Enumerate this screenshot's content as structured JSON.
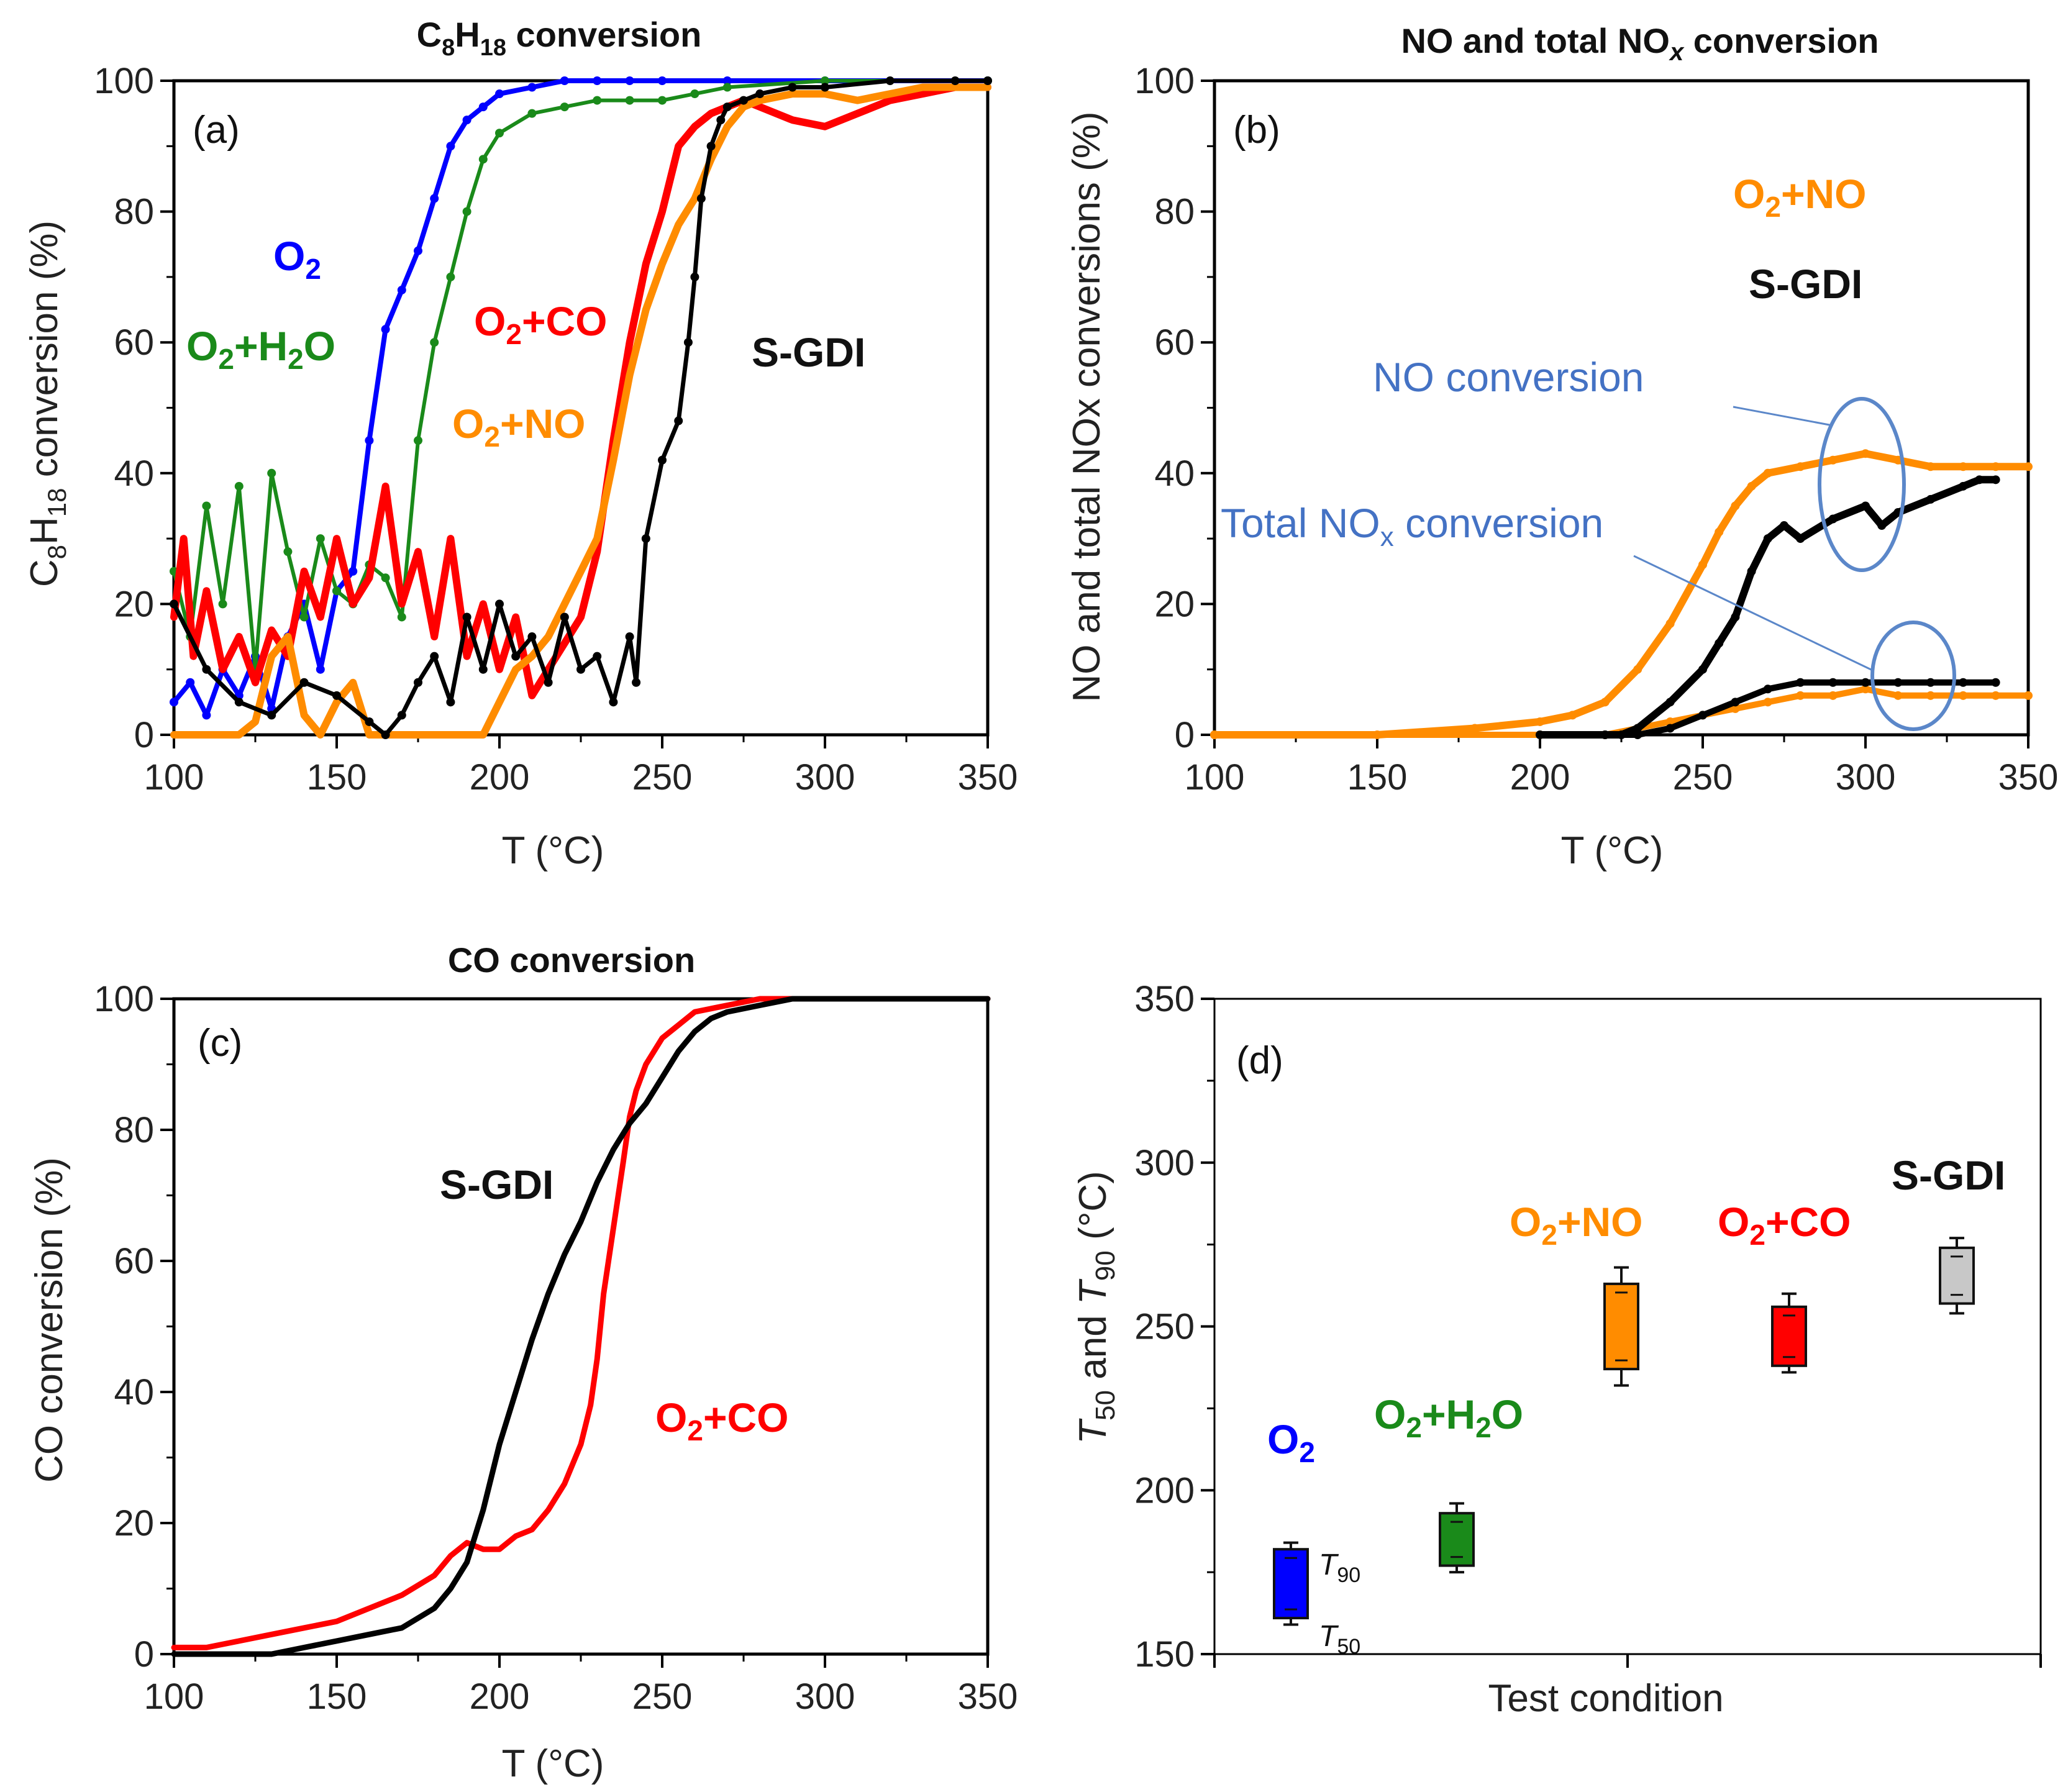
{
  "chart_data": [
    {
      "id": "a",
      "type": "scatter",
      "title": "C8H18 conversion",
      "title_parts": {
        "pre": "C",
        "s1": "8",
        "mid": "H",
        "s2": "18",
        "post": " conversion"
      },
      "panel_label": "(a)",
      "xlabel": "T (°C)",
      "ylabel": "C8H18 conversion (%)",
      "ylabel_parts": {
        "pre": "C",
        "s1": "8",
        "mid": "H",
        "s2": "18",
        "post": " conversion (%)"
      },
      "xlim": [
        100,
        350
      ],
      "ylim": [
        0,
        100
      ],
      "xticks": [
        "100",
        "150",
        "200",
        "250",
        "300",
        "350"
      ],
      "yticks": [
        "0",
        "20",
        "40",
        "60",
        "80",
        "100"
      ],
      "series": [
        {
          "name": "O2",
          "color": "#0000ff",
          "x": [
            100,
            105,
            110,
            115,
            120,
            125,
            130,
            135,
            140,
            145,
            150,
            155,
            160,
            165,
            170,
            175,
            180,
            185,
            190,
            195,
            200,
            210,
            220,
            230,
            240,
            250,
            270,
            300,
            350
          ],
          "y": [
            5,
            8,
            3,
            10,
            6,
            12,
            4,
            15,
            20,
            10,
            22,
            25,
            45,
            62,
            68,
            74,
            82,
            90,
            94,
            96,
            98,
            99,
            100,
            100,
            100,
            100,
            100,
            100,
            100
          ]
        },
        {
          "name": "O2+H2O",
          "color": "#1a8a1a",
          "x": [
            100,
            105,
            110,
            115,
            120,
            125,
            130,
            135,
            140,
            145,
            150,
            155,
            160,
            165,
            170,
            175,
            180,
            185,
            190,
            195,
            200,
            210,
            220,
            230,
            240,
            250,
            260,
            270,
            300,
            350
          ],
          "y": [
            25,
            15,
            35,
            20,
            38,
            10,
            40,
            28,
            18,
            30,
            22,
            20,
            26,
            24,
            18,
            45,
            60,
            70,
            80,
            88,
            92,
            95,
            96,
            97,
            97,
            97,
            98,
            99,
            100,
            100
          ]
        },
        {
          "name": "O2+CO",
          "color": "#ff0000",
          "x": [
            100,
            103,
            106,
            110,
            115,
            120,
            125,
            130,
            135,
            140,
            145,
            150,
            155,
            160,
            165,
            170,
            175,
            180,
            185,
            190,
            195,
            200,
            205,
            210,
            215,
            220,
            225,
            230,
            235,
            240,
            245,
            250,
            255,
            260,
            265,
            270,
            275,
            280,
            290,
            300,
            310,
            320,
            330,
            340,
            350
          ],
          "y": [
            18,
            30,
            12,
            22,
            10,
            15,
            8,
            16,
            12,
            25,
            18,
            30,
            20,
            24,
            38,
            20,
            28,
            15,
            30,
            12,
            20,
            10,
            18,
            6,
            10,
            14,
            18,
            28,
            45,
            60,
            72,
            80,
            90,
            93,
            95,
            96,
            97,
            96,
            94,
            93,
            95,
            97,
            98,
            99,
            99
          ]
        },
        {
          "name": "O2+NO",
          "color": "#ff8c00",
          "x": [
            100,
            110,
            120,
            125,
            130,
            135,
            140,
            145,
            150,
            155,
            160,
            165,
            180,
            195,
            200,
            205,
            210,
            215,
            220,
            225,
            230,
            235,
            240,
            245,
            250,
            255,
            260,
            265,
            270,
            275,
            280,
            290,
            300,
            310,
            320,
            330,
            340,
            350
          ],
          "y": [
            0,
            0,
            0,
            2,
            12,
            15,
            3,
            0,
            5,
            8,
            0,
            0,
            0,
            0,
            5,
            10,
            12,
            15,
            20,
            25,
            30,
            42,
            55,
            65,
            72,
            78,
            82,
            88,
            93,
            96,
            97,
            98,
            98,
            97,
            98,
            99,
            99,
            99
          ]
        },
        {
          "name": "S-GDI",
          "color": "#000000",
          "x": [
            100,
            110,
            120,
            130,
            140,
            150,
            160,
            165,
            170,
            175,
            180,
            185,
            190,
            195,
            200,
            205,
            210,
            215,
            220,
            225,
            230,
            235,
            240,
            242,
            245,
            250,
            255,
            258,
            260,
            262,
            265,
            268,
            270,
            275,
            280,
            290,
            300,
            320,
            340,
            350
          ],
          "y": [
            20,
            10,
            5,
            3,
            8,
            6,
            2,
            0,
            3,
            8,
            12,
            5,
            18,
            10,
            20,
            12,
            15,
            8,
            18,
            10,
            12,
            5,
            15,
            8,
            30,
            42,
            48,
            60,
            70,
            82,
            90,
            94,
            96,
            97,
            98,
            99,
            99,
            100,
            100,
            100
          ]
        }
      ],
      "annotations": [
        {
          "label": "O2",
          "color": "#0000ff"
        },
        {
          "label": "O2+H2O",
          "color": "#1a8a1a"
        },
        {
          "label": "O2+CO",
          "color": "#ff0000"
        },
        {
          "label": "O2+NO",
          "color": "#ff8c00"
        },
        {
          "label": "S-GDI",
          "color": "#111111"
        }
      ]
    },
    {
      "id": "b",
      "type": "scatter",
      "title": "NO and total NOx conversion",
      "title_parts": {
        "pre": "NO and total NO",
        "sub": "x",
        "post": " conversion"
      },
      "panel_label": "(b)",
      "xlabel": "T (°C)",
      "ylabel": "NO and total NOx conversions (%)",
      "xlim": [
        100,
        350
      ],
      "ylim": [
        0,
        100
      ],
      "xticks": [
        "100",
        "150",
        "200",
        "250",
        "300",
        "350"
      ],
      "yticks": [
        "0",
        "20",
        "40",
        "60",
        "80",
        "100"
      ],
      "series": [
        {
          "name": "O2+NO, NO conversion",
          "color": "#ff8c00",
          "x": [
            100,
            150,
            180,
            200,
            210,
            220,
            230,
            240,
            250,
            255,
            260,
            265,
            270,
            280,
            290,
            300,
            310,
            320,
            330,
            340,
            350
          ],
          "y": [
            0,
            0,
            1,
            2,
            3,
            5,
            10,
            17,
            26,
            31,
            35,
            38,
            40,
            41,
            42,
            43,
            42,
            41,
            41,
            41,
            41
          ]
        },
        {
          "name": "O2+NO, total NOx conversion",
          "color": "#ff8c00",
          "x": [
            100,
            200,
            220,
            230,
            240,
            250,
            260,
            270,
            280,
            290,
            300,
            310,
            320,
            330,
            340,
            350
          ],
          "y": [
            0,
            0,
            0,
            1,
            2,
            3,
            4,
            5,
            6,
            6,
            7,
            6,
            6,
            6,
            6,
            6
          ]
        },
        {
          "name": "S-GDI, NO conversion",
          "color": "#000000",
          "x": [
            200,
            220,
            225,
            230,
            240,
            250,
            255,
            260,
            265,
            270,
            275,
            280,
            290,
            300,
            305,
            310,
            320,
            330,
            335,
            340
          ],
          "y": [
            0,
            0,
            0,
            1,
            5,
            10,
            14,
            18,
            25,
            30,
            32,
            30,
            33,
            35,
            32,
            34,
            36,
            38,
            39,
            39
          ]
        },
        {
          "name": "S-GDI, total NOx conversion",
          "color": "#000000",
          "x": [
            220,
            230,
            240,
            250,
            260,
            270,
            280,
            290,
            300,
            310,
            320,
            330,
            340
          ],
          "y": [
            0,
            0,
            1,
            3,
            5,
            7,
            8,
            8,
            8,
            8,
            8,
            8,
            8
          ]
        }
      ],
      "annotations": [
        {
          "label": "O2+NO",
          "color": "#ff8c00"
        },
        {
          "label": "S-GDI",
          "color": "#111111"
        },
        {
          "label": "NO conversion",
          "color": "#4472c4"
        },
        {
          "label": "Total NOx conversion",
          "color": "#4472c4"
        }
      ]
    },
    {
      "id": "c",
      "type": "line",
      "title": "CO conversion",
      "panel_label": "(c)",
      "xlabel": "T (°C)",
      "ylabel": "CO conversion (%)",
      "xlim": [
        100,
        350
      ],
      "ylim": [
        0,
        100
      ],
      "xticks": [
        "100",
        "150",
        "200",
        "250",
        "300",
        "350"
      ],
      "yticks": [
        "0",
        "20",
        "40",
        "60",
        "80",
        "100"
      ],
      "series": [
        {
          "name": "O2+CO",
          "color": "#ff0000",
          "x": [
            100,
            110,
            120,
            130,
            140,
            150,
            160,
            170,
            180,
            185,
            190,
            195,
            200,
            205,
            210,
            215,
            220,
            225,
            228,
            230,
            232,
            235,
            238,
            240,
            242,
            245,
            250,
            255,
            260,
            270,
            280,
            300,
            320,
            350
          ],
          "y": [
            1,
            1,
            2,
            3,
            4,
            5,
            7,
            9,
            12,
            15,
            17,
            16,
            16,
            18,
            19,
            22,
            26,
            32,
            38,
            45,
            55,
            65,
            75,
            82,
            86,
            90,
            94,
            96,
            98,
            99,
            100,
            100,
            100,
            100
          ]
        },
        {
          "name": "S-GDI",
          "color": "#000000",
          "x": [
            100,
            120,
            130,
            140,
            150,
            160,
            170,
            180,
            185,
            190,
            195,
            200,
            205,
            210,
            215,
            220,
            225,
            230,
            235,
            240,
            245,
            250,
            255,
            260,
            265,
            270,
            280,
            290,
            300,
            320,
            350
          ],
          "y": [
            0,
            0,
            0,
            1,
            2,
            3,
            4,
            7,
            10,
            14,
            22,
            32,
            40,
            48,
            55,
            61,
            66,
            72,
            77,
            81,
            84,
            88,
            92,
            95,
            97,
            98,
            99,
            100,
            100,
            100,
            100
          ]
        }
      ],
      "annotations": [
        {
          "label": "S-GDI",
          "color": "#111111"
        },
        {
          "label": "O2+CO",
          "color": "#ff0000"
        }
      ]
    },
    {
      "id": "d",
      "type": "box",
      "panel_label": "(d)",
      "xlabel": "Test condition",
      "ylabel": "T50 and T90 (°C)",
      "ylim": [
        150,
        350
      ],
      "yticks": [
        "150",
        "200",
        "250",
        "300",
        "350"
      ],
      "categories": [
        "O2",
        "O2+H2O",
        "O2+NO",
        "O2+CO",
        "S-GDI"
      ],
      "boxes": [
        {
          "name": "O2",
          "color": "#0000ff",
          "t50": 161,
          "t90": 182,
          "err_low": 159,
          "err_high": 184
        },
        {
          "name": "O2+H2O",
          "color": "#1a8a1a",
          "t50": 177,
          "t90": 193,
          "err_low": 175,
          "err_high": 196
        },
        {
          "name": "O2+NO",
          "color": "#ff8c00",
          "t50": 237,
          "t90": 263,
          "err_low": 232,
          "err_high": 268
        },
        {
          "name": "O2+CO",
          "color": "#ff0000",
          "t50": 238,
          "t90": 256,
          "err_low": 236,
          "err_high": 260
        },
        {
          "name": "S-GDI",
          "color": "#c8c8c8",
          "t50": 257,
          "t90": 274,
          "err_low": 254,
          "err_high": 277
        }
      ],
      "box_labels": {
        "t90": "T90",
        "t50": "T50"
      },
      "annotations": [
        {
          "label": "O2",
          "color": "#0000ff"
        },
        {
          "label": "O2+H2O",
          "color": "#1a8a1a"
        },
        {
          "label": "O2+NO",
          "color": "#ff8c00"
        },
        {
          "label": "O2+CO",
          "color": "#ff0000"
        },
        {
          "label": "S-GDI",
          "color": "#111111"
        }
      ]
    }
  ]
}
